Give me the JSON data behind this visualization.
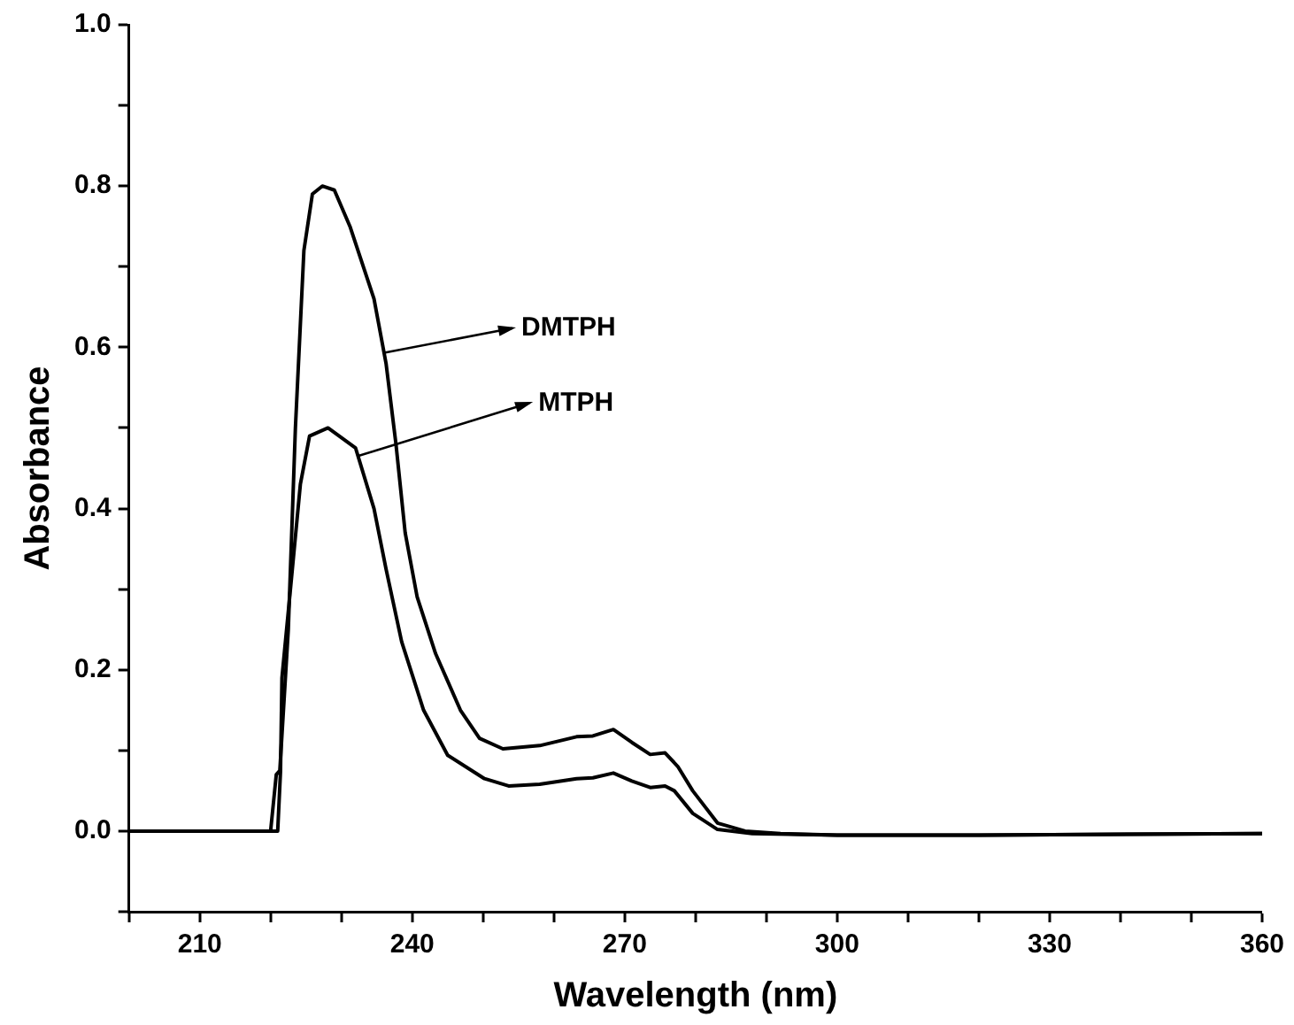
{
  "chart_data": {
    "type": "line",
    "xlabel": "Wavelength (nm)",
    "ylabel": "Absorbance",
    "xlim": [
      200,
      360
    ],
    "ylim": [
      -0.1,
      1.0
    ],
    "xticks": [
      {
        "value": 200,
        "label": null
      },
      210,
      {
        "value": 220,
        "label": null
      },
      {
        "value": 230,
        "label": null
      },
      240,
      {
        "value": 250,
        "label": null
      },
      {
        "value": 260,
        "label": null
      },
      270,
      {
        "value": 280,
        "label": null
      },
      {
        "value": 290,
        "label": null
      },
      300,
      {
        "value": 310,
        "label": null
      },
      {
        "value": 320,
        "label": null
      },
      330,
      {
        "value": 340,
        "label": null
      },
      {
        "value": 350,
        "label": null
      },
      360
    ],
    "yticks": [
      {
        "value": -0.1,
        "label": null
      },
      {
        "value": 0,
        "label": "0.0"
      },
      {
        "value": 0.1,
        "label": null
      },
      0.2,
      {
        "value": 0.3,
        "label": null
      },
      0.4,
      {
        "value": 0.5,
        "label": null
      },
      0.6,
      {
        "value": 0.7,
        "label": null
      },
      0.8,
      {
        "value": 0.9,
        "label": null
      },
      {
        "value": 1,
        "label": "1.0"
      }
    ],
    "grid": false,
    "marker": "none",
    "line_style": "solid",
    "series": [
      {
        "color": "#000000",
        "x": [
          200,
          220,
          220.8,
          221.3,
          222.5,
          223.5,
          224.7,
          225.9,
          227.3,
          229,
          231.2,
          234.6,
          236.3,
          237.7,
          239,
          240.7,
          243.3,
          246.8,
          249.5,
          252.8,
          258,
          263.2,
          265.5,
          268.4,
          271,
          273.6,
          275.7,
          277.5,
          279.6,
          283.1,
          287,
          292,
          300,
          320,
          360
        ],
        "values": [
          0,
          0,
          0.07,
          0.075,
          0.25,
          0.5,
          0.72,
          0.79,
          0.8,
          0.795,
          0.75,
          0.66,
          0.58,
          0.48,
          0.37,
          0.29,
          0.22,
          0.15,
          0.115,
          0.102,
          0.106,
          0.117,
          0.118,
          0.126,
          0.11,
          0.095,
          0.097,
          0.08,
          0.05,
          0.01,
          0.0,
          -0.003,
          -0.005,
          -0.005,
          -0.003
        ]
      },
      {
        "color": "#000000",
        "x": [
          200,
          221,
          221.4,
          221.6,
          222.8,
          224.2,
          225.5,
          228.1,
          232,
          234.6,
          236.3,
          238.5,
          241.6,
          245,
          250.2,
          253.6,
          258,
          263.2,
          265.5,
          268.4,
          271,
          273.6,
          275.7,
          277,
          279.6,
          283.1,
          288,
          300,
          320,
          360
        ],
        "values": [
          0,
          0,
          0.074,
          0.19,
          0.3,
          0.43,
          0.49,
          0.5,
          0.475,
          0.4,
          0.325,
          0.235,
          0.15,
          0.094,
          0.065,
          0.056,
          0.058,
          0.065,
          0.066,
          0.072,
          0.062,
          0.054,
          0.056,
          0.05,
          0.022,
          0.002,
          -0.003,
          -0.005,
          -0.005,
          -0.003
        ]
      }
    ],
    "annotations": [
      {
        "text": "DMTPH",
        "x": 235.9,
        "y": 0.593
      },
      {
        "text": "MTPH",
        "x": 232.3,
        "y": 0.465
      }
    ]
  }
}
